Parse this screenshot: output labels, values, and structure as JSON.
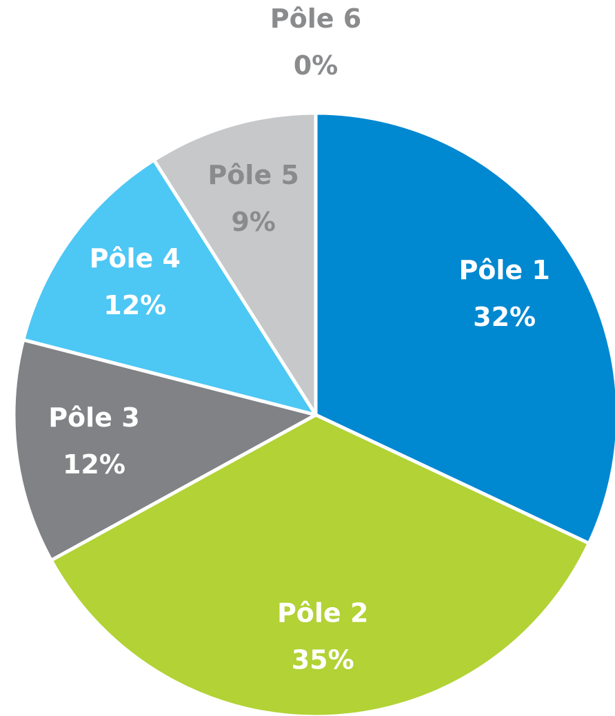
{
  "chart_data": {
    "type": "pie",
    "categories": [
      "Pôle 1",
      "Pôle 2",
      "Pôle 3",
      "Pôle 4",
      "Pôle 5",
      "Pôle 6"
    ],
    "values": [
      32,
      35,
      12,
      12,
      9,
      0
    ],
    "value_labels": [
      "32%",
      "35%",
      "12%",
      "12%",
      "9%",
      "0%"
    ],
    "colors": [
      "#0088d1",
      "#b2d235",
      "#808285",
      "#4dc7f4",
      "#c7c8ca",
      "#a7a9ac"
    ],
    "label_colors": [
      "#ffffff",
      "#ffffff",
      "#ffffff",
      "#ffffff",
      "#8a8b8d",
      "#8a8b8d"
    ]
  }
}
